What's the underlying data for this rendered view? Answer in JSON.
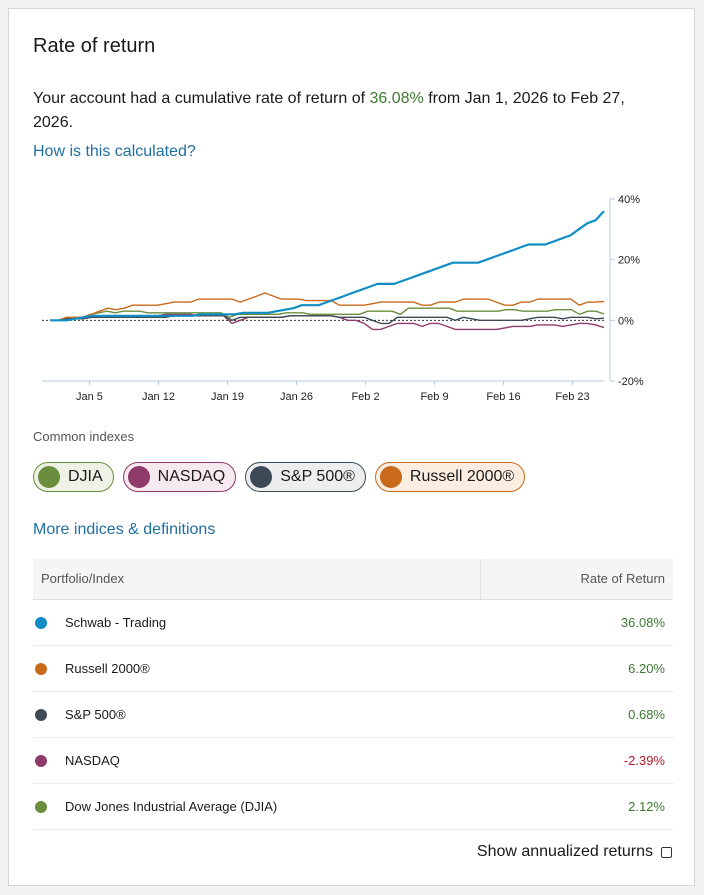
{
  "title": "Rate of return",
  "summary": {
    "prefix": "Your account had a cumulative rate of return of ",
    "pct": "36.08%",
    "suffix": " from Jan 1, 2026 to Feb 27, 2026."
  },
  "how_link": "How is this calculated?",
  "common_label": "Common indexes",
  "chips": [
    {
      "label": "DJIA",
      "color": "#6b8e3e"
    },
    {
      "label": "NASDAQ",
      "color": "#8e3a6a"
    },
    {
      "label": "S&P 500®",
      "color": "#3d4a56"
    },
    {
      "label": "Russell 2000®",
      "color": "#c86a1a"
    }
  ],
  "more_link": "More indices & definitions",
  "table": {
    "col1": "Portfolio/Index",
    "col2": "Rate of Return",
    "rows": [
      {
        "name": "Schwab - Trading",
        "value": "36.08%",
        "color": "#0f8dc4",
        "sign": "pos"
      },
      {
        "name": "Russell 2000®",
        "value": "6.20%",
        "color": "#c86a1a",
        "sign": "pos"
      },
      {
        "name": "S&P 500®",
        "value": "0.68%",
        "color": "#3d4a56",
        "sign": "pos"
      },
      {
        "name": "NASDAQ",
        "value": "-2.39%",
        "color": "#8e3a6a",
        "sign": "neg"
      },
      {
        "name": "Dow Jones Industrial Average (DJIA)",
        "value": "2.12%",
        "color": "#6b8e3e",
        "sign": "pos"
      }
    ]
  },
  "annualized_label": "Show annualized returns",
  "chart_data": {
    "type": "line",
    "x_ticks": [
      "Jan 5",
      "Jan 12",
      "Jan 19",
      "Jan 26",
      "Feb 2",
      "Feb 9",
      "Feb 16",
      "Feb 23"
    ],
    "y_ticks": [
      "40%",
      "20%",
      "0%",
      "-20%"
    ],
    "ylim": [
      -20,
      40
    ],
    "x_start": "Jan 1",
    "x_end": "Feb 27",
    "series": [
      {
        "key": "schwab",
        "color": "#0f8dc4",
        "values": [
          0,
          0,
          0,
          0.5,
          1,
          1.5,
          1.5,
          1.5,
          1.5,
          1.5,
          1.5,
          1.5,
          1.5,
          1.5,
          1.5,
          1.5,
          1.5,
          1.5,
          2,
          2,
          2,
          2,
          2,
          2.5,
          2.5,
          2.5,
          2.5,
          3,
          3.5,
          4,
          5,
          5,
          5,
          6,
          7,
          8,
          9,
          10,
          11,
          12,
          12,
          12,
          13,
          14,
          15,
          16,
          17,
          18,
          19,
          19,
          19,
          19,
          20,
          21,
          22,
          23,
          24,
          25,
          25,
          25,
          26,
          27,
          28,
          30,
          32,
          33,
          36
        ]
      },
      {
        "key": "russell",
        "color": "#c86a1a",
        "values": [
          0,
          0,
          1,
          1,
          1,
          2,
          3,
          4,
          3.5,
          4,
          5,
          5,
          5,
          5,
          5.5,
          6,
          6,
          6,
          7,
          7,
          7,
          7,
          7,
          6,
          7,
          8,
          9,
          8,
          7,
          7,
          7,
          6.5,
          6.5,
          6.5,
          6.5,
          5,
          5,
          5,
          5,
          5.5,
          6,
          6,
          6,
          6,
          6,
          5,
          5,
          6,
          6,
          6,
          7,
          7,
          7,
          7,
          6,
          5,
          5,
          6,
          6,
          7,
          7,
          7,
          7,
          7,
          5,
          6,
          6,
          6.2
        ]
      },
      {
        "key": "sp",
        "color": "#3d4a56",
        "values": [
          0,
          0,
          0.5,
          0.5,
          0.5,
          1,
          1,
          1,
          1,
          1,
          1,
          1,
          1,
          1,
          1,
          1.5,
          1.5,
          1.5,
          1.5,
          1.5,
          1.5,
          1.5,
          0,
          1,
          1,
          1,
          1,
          1,
          1,
          1.5,
          1.5,
          1.5,
          1.5,
          1.5,
          1.5,
          1,
          1,
          1,
          1,
          0,
          -1,
          -1,
          1,
          1,
          1,
          1,
          1,
          1,
          1,
          0,
          1,
          0.5,
          0,
          0,
          0,
          0,
          0,
          0,
          0.5,
          1,
          1,
          1,
          0.5,
          1,
          1,
          1,
          0.5,
          0.7
        ]
      },
      {
        "key": "nasdaq",
        "color": "#8e3a6a",
        "values": [
          0,
          0,
          0,
          0.5,
          1,
          1,
          1.5,
          1.5,
          1.5,
          1.5,
          1.5,
          1.5,
          1.5,
          1.5,
          2,
          2,
          2,
          2,
          1.5,
          1.5,
          1.5,
          1.5,
          -1,
          0,
          1,
          1,
          1,
          1,
          1,
          1.5,
          1.5,
          1.5,
          1.5,
          1.5,
          1.5,
          1,
          0,
          0,
          -1,
          -3,
          -3,
          -2,
          -1,
          -1,
          -1,
          -2,
          -1,
          -1,
          -2,
          -3,
          -3,
          -3,
          -3,
          -3,
          -3,
          -2.5,
          -2,
          -2,
          -2,
          -1.5,
          -1.5,
          -1.5,
          -2,
          -1.5,
          -1,
          -1,
          -1.5,
          -2.4
        ]
      },
      {
        "key": "djia",
        "color": "#6b8e3e",
        "values": [
          0,
          0,
          0.5,
          1,
          1,
          2,
          2.5,
          3,
          2.5,
          3,
          3,
          3,
          2.5,
          2.5,
          2.5,
          2.5,
          2.5,
          2.5,
          2.5,
          2.5,
          2.5,
          2.5,
          1,
          2,
          2,
          2,
          2,
          2,
          2,
          2.5,
          2.5,
          2.5,
          2,
          2,
          2,
          2,
          2,
          2,
          2,
          3,
          3,
          3,
          3,
          2,
          4,
          4,
          4,
          4,
          4,
          4,
          3,
          3,
          3,
          3,
          3,
          3,
          3.5,
          3.5,
          3,
          3,
          3,
          3,
          3.5,
          3.5,
          3.5,
          2,
          3,
          3,
          2.1
        ]
      }
    ]
  }
}
